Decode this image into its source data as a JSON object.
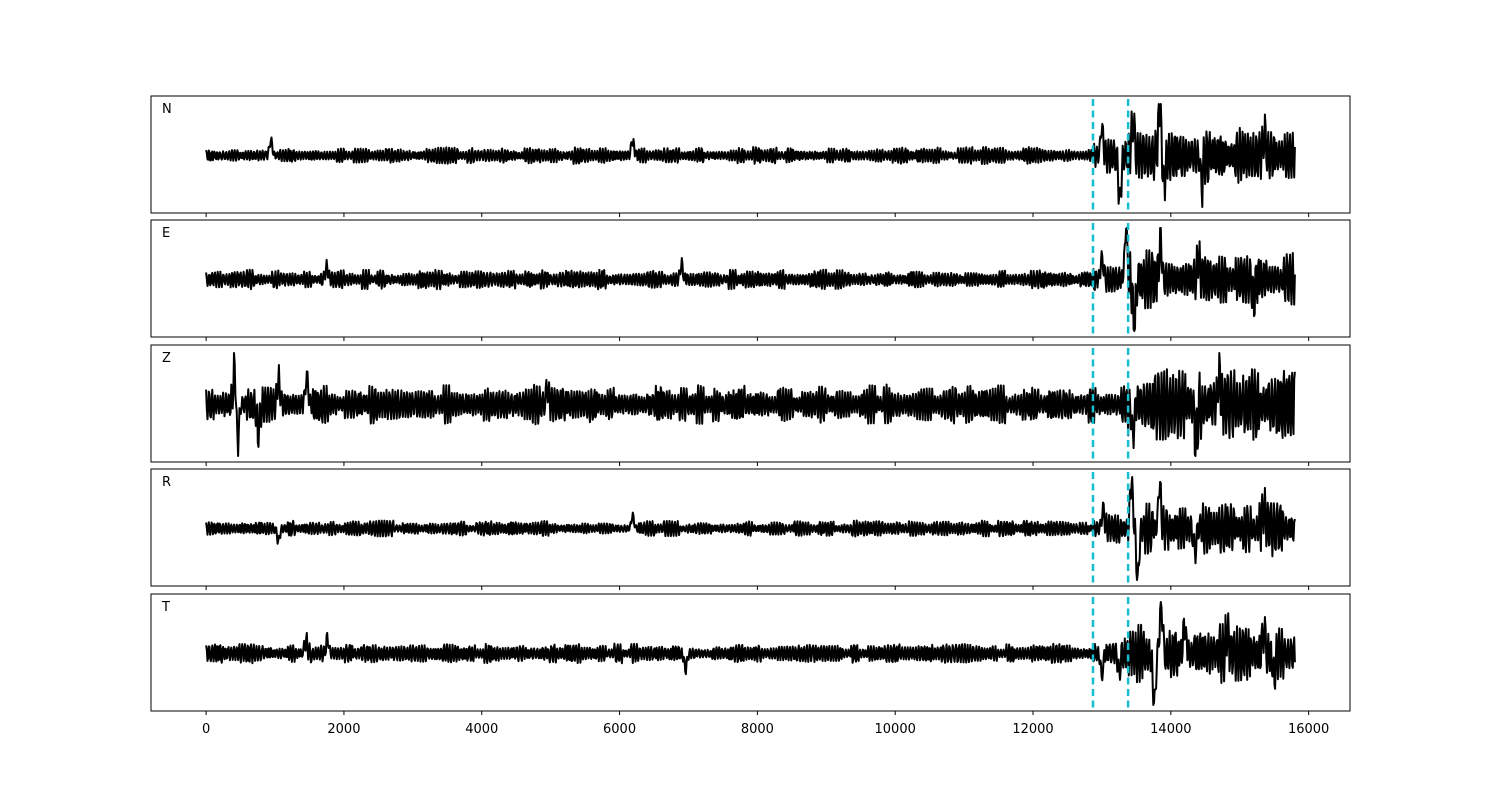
{
  "chart_data": {
    "type": "line",
    "title": "",
    "xlabel": "",
    "ylabel": "",
    "xlim": [
      -800,
      16600
    ],
    "x_ticks": [
      "0",
      "2000",
      "4000",
      "6000",
      "8000",
      "10000",
      "12000",
      "14000",
      "16000"
    ],
    "x_tick_values": [
      0,
      2000,
      4000,
      6000,
      8000,
      10000,
      12000,
      14000,
      16000
    ],
    "y_ticks": "none",
    "grid": false,
    "legend": "none",
    "line_color": "#000000",
    "pick_color": "#17becf",
    "sample_count": 15800,
    "picks": [
      12870,
      13380
    ],
    "panels": [
      {
        "label": "N",
        "noise_amp": 0.13,
        "peaks": [
          [
            940,
            0.3
          ],
          [
            6190,
            0.28
          ],
          [
            13000,
            0.55
          ],
          [
            13260,
            -0.95
          ],
          [
            13450,
            0.7
          ],
          [
            13840,
            1.0
          ],
          [
            13900,
            -0.6
          ],
          [
            14450,
            -0.55
          ],
          [
            15360,
            0.45
          ]
        ],
        "signal_amp": 0.45
      },
      {
        "label": "E",
        "noise_amp": 0.15,
        "peaks": [
          [
            1750,
            0.25
          ],
          [
            6900,
            0.3
          ],
          [
            13000,
            0.4
          ],
          [
            13350,
            1.0
          ],
          [
            13470,
            -1.0
          ],
          [
            13850,
            0.75
          ],
          [
            14400,
            0.45
          ],
          [
            15200,
            -0.4
          ]
        ],
        "signal_amp": 0.45
      },
      {
        "label": "Z",
        "noise_amp": 0.3,
        "peaks": [
          [
            420,
            1.0
          ],
          [
            450,
            -1.0
          ],
          [
            760,
            -0.55
          ],
          [
            1050,
            0.5
          ],
          [
            1460,
            0.55
          ],
          [
            4950,
            0.3
          ],
          [
            13450,
            -0.6
          ],
          [
            14370,
            -0.7
          ],
          [
            14700,
            0.55
          ]
        ],
        "signal_amp": 0.55
      },
      {
        "label": "R",
        "noise_amp": 0.12,
        "peaks": [
          [
            1050,
            -0.25
          ],
          [
            6190,
            0.25
          ],
          [
            13020,
            0.4
          ],
          [
            13430,
            1.0
          ],
          [
            13520,
            -1.0
          ],
          [
            13840,
            0.9
          ],
          [
            14350,
            -0.45
          ],
          [
            15350,
            0.4
          ]
        ],
        "signal_amp": 0.42
      },
      {
        "label": "T",
        "noise_amp": 0.15,
        "peaks": [
          [
            1450,
            0.25
          ],
          [
            1760,
            0.3
          ],
          [
            6960,
            -0.3
          ],
          [
            13000,
            -0.4
          ],
          [
            13250,
            -0.35
          ],
          [
            13760,
            -1.0
          ],
          [
            13860,
            1.0
          ],
          [
            14200,
            0.55
          ],
          [
            14820,
            0.45
          ],
          [
            15350,
            0.45
          ],
          [
            15500,
            -0.45
          ]
        ],
        "signal_amp": 0.45
      }
    ]
  }
}
